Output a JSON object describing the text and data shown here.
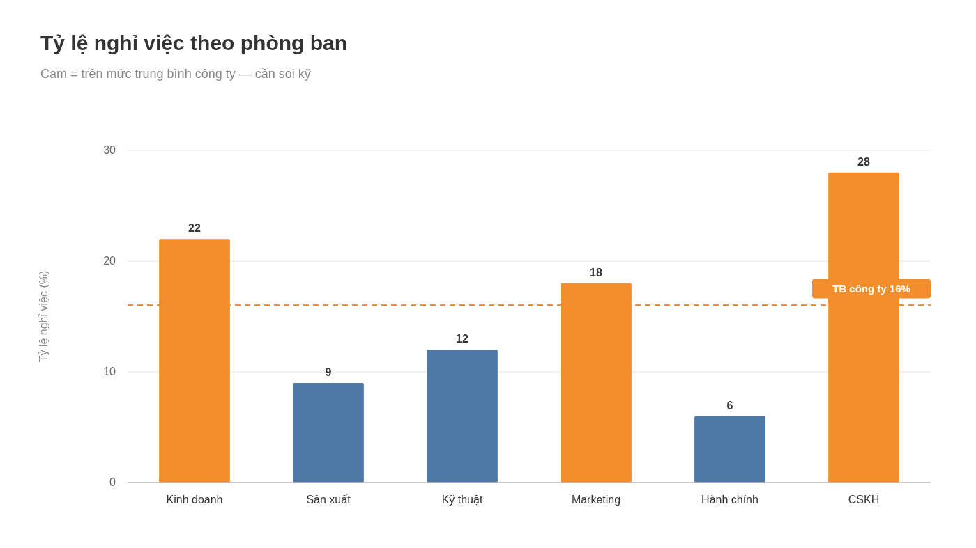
{
  "chart_data": {
    "type": "bar",
    "title": "Tỷ lệ nghỉ việc theo phòng ban",
    "subtitle": "Cam = trên mức trung bình công ty — cần soi kỹ",
    "ylabel": "Tỷ lệ nghỉ việc (%)",
    "categories": [
      "Kinh doanh",
      "Sản xuất",
      "Kỹ thuật",
      "Marketing",
      "Hành chính",
      "CSKH"
    ],
    "values": [
      22,
      9,
      12,
      18,
      6,
      28
    ],
    "colors": [
      "#f28e2b",
      "#4e79a7",
      "#4e79a7",
      "#f28e2b",
      "#4e79a7",
      "#f28e2b"
    ],
    "ylim": [
      0,
      30
    ],
    "yticks": [
      0,
      10,
      20,
      30
    ],
    "grid": "y",
    "data_labels": true,
    "ref_lines": [
      {
        "axis": "y",
        "value": 16,
        "label": "TB công ty 16%",
        "color": "#f28e2b",
        "line_style": "dashed"
      }
    ]
  }
}
